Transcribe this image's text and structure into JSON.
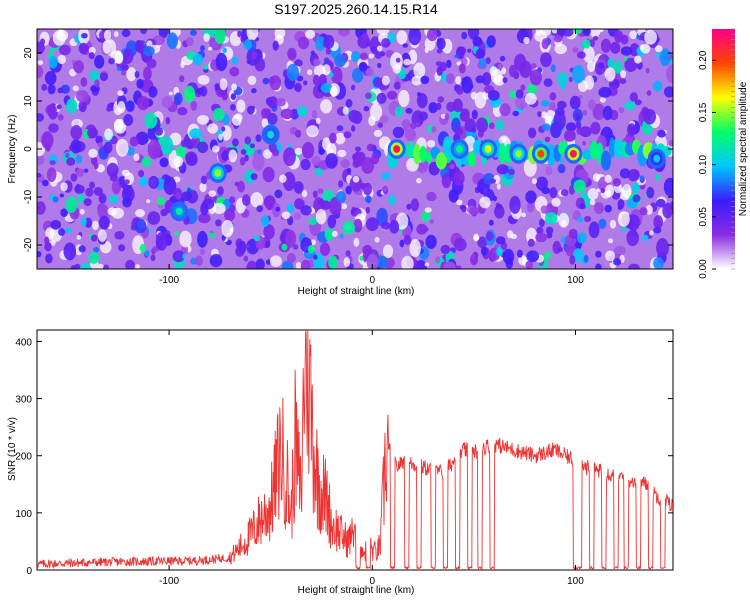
{
  "title": "S197.2025.260.14.15.R14",
  "chart_data": [
    {
      "type": "heatmap",
      "xlabel": "Height of straight line (km)",
      "ylabel": "Frequency (Hz)",
      "xlim": [
        -165,
        148
      ],
      "ylim": [
        -25,
        25
      ],
      "xticks": [
        -100,
        0,
        100
      ],
      "xtick_labels": [
        "-100",
        "0",
        "100"
      ],
      "yticks": [
        -20,
        -10,
        0,
        10,
        20
      ],
      "ytick_labels": [
        "-20",
        "-10",
        "0",
        "10",
        "20"
      ],
      "colorbar": {
        "label": "Normalized spectral amplitude",
        "range": [
          0.0,
          0.23
        ],
        "ticks": [
          0.0,
          0.05,
          0.1,
          0.15,
          0.2
        ],
        "tick_labels": [
          "0.00",
          "0.05",
          "0.10",
          "0.15",
          "0.20"
        ],
        "colormap": [
          "#ffffff",
          "#8a2be2",
          "#3a1cff",
          "#00c8ff",
          "#00ff66",
          "#ffff00",
          "#ff4400",
          "#ff0088"
        ]
      },
      "hotspots": [
        {
          "x": 12,
          "y": 0,
          "value": 0.22
        },
        {
          "x": 83,
          "y": -1,
          "value": 0.2
        },
        {
          "x": 99,
          "y": -1,
          "value": 0.22
        },
        {
          "x": -76,
          "y": -5,
          "value": 0.15
        },
        {
          "x": -95,
          "y": -13,
          "value": 0.12
        },
        {
          "x": -50,
          "y": 3,
          "value": 0.11
        },
        {
          "x": 57,
          "y": 0,
          "value": 0.16
        },
        {
          "x": 72,
          "y": -1,
          "value": 0.15
        },
        {
          "x": 43,
          "y": 0,
          "value": 0.13
        },
        {
          "x": 140,
          "y": -2,
          "value": 0.1
        }
      ]
    },
    {
      "type": "line",
      "xlabel": "Height of straight line (km)",
      "ylabel": "SNR (10 * v/v)",
      "xlim": [
        -165,
        148
      ],
      "ylim": [
        0,
        420
      ],
      "xticks": [
        -100,
        0,
        100
      ],
      "xtick_labels": [
        "-100",
        "0",
        "100"
      ],
      "yticks": [
        0,
        100,
        200,
        300,
        400
      ],
      "ytick_labels": [
        "0",
        "100",
        "200",
        "300",
        "400"
      ],
      "color": "#ee3333",
      "x": [
        -165,
        -150,
        -130,
        -110,
        -90,
        -80,
        -70,
        -65,
        -60,
        -55,
        -50,
        -45,
        -42,
        -40,
        -38,
        -35,
        -33,
        -30,
        -28,
        -25,
        -22,
        -20,
        -17,
        -15,
        -12,
        -10,
        -8,
        -6,
        -4,
        -2,
        0,
        2,
        4,
        7,
        10,
        12,
        15,
        20,
        25,
        30,
        35,
        40,
        45,
        50,
        55,
        60,
        65,
        70,
        75,
        80,
        85,
        90,
        95,
        100,
        105,
        110,
        115,
        120,
        125,
        130,
        135,
        140,
        145,
        148
      ],
      "values": [
        10,
        12,
        14,
        15,
        16,
        18,
        22,
        40,
        60,
        90,
        110,
        210,
        160,
        90,
        220,
        130,
        410,
        280,
        180,
        140,
        120,
        80,
        70,
        60,
        50,
        60,
        90,
        50,
        30,
        40,
        35,
        30,
        45,
        220,
        200,
        180,
        190,
        185,
        180,
        175,
        170,
        190,
        210,
        205,
        215,
        220,
        215,
        210,
        205,
        200,
        205,
        210,
        200,
        190,
        180,
        175,
        170,
        165,
        160,
        155,
        150,
        130,
        120,
        110
      ]
    }
  ]
}
